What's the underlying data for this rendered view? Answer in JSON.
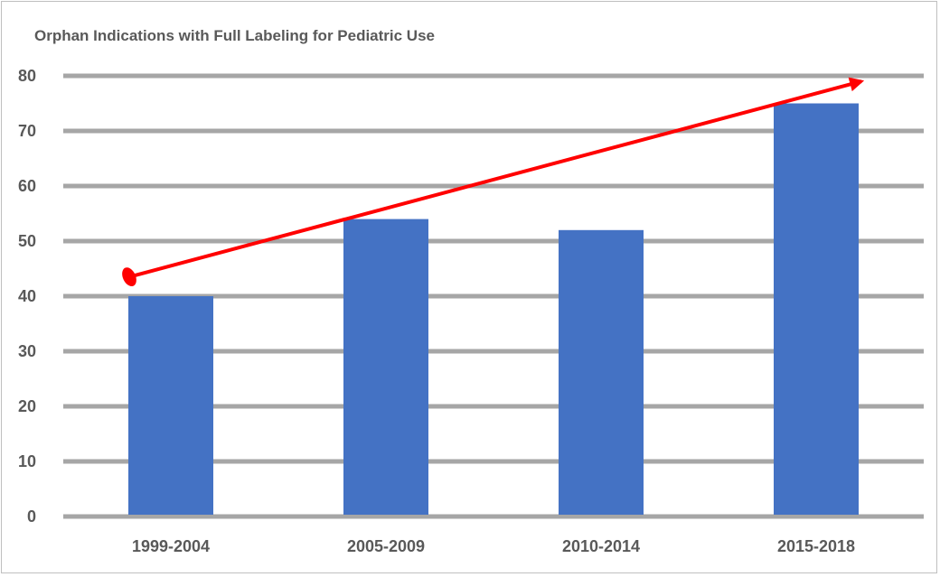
{
  "chart_data": {
    "type": "bar",
    "title": "Orphan Indications with Full Labeling for Pediatric Use",
    "xlabel": "",
    "ylabel": "",
    "categories": [
      "1999-2004",
      "2005-2009",
      "2010-2014",
      "2015-2018"
    ],
    "values": [
      40,
      54,
      52,
      75
    ],
    "ylim": [
      0,
      80
    ],
    "yticks": [
      0,
      10,
      20,
      30,
      40,
      50,
      60,
      70,
      80
    ],
    "grid": true,
    "legend": "none",
    "bar_color": "#4472c4",
    "gridline_color": "#a6a6a6",
    "annotations": [
      {
        "type": "trend-arrow",
        "color": "#ff0000",
        "from": {
          "category": "1999-2004",
          "y": 43.5
        },
        "to": {
          "category": "2015-2018",
          "y": 79
        }
      }
    ]
  }
}
